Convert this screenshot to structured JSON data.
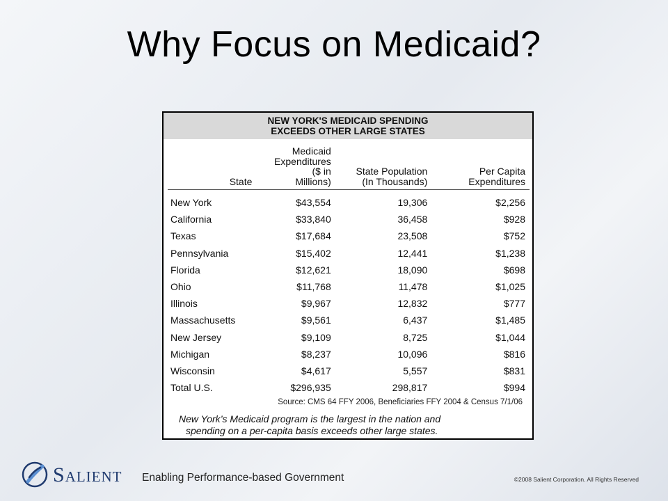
{
  "slide": {
    "title": "Why Focus on Medicaid?"
  },
  "table": {
    "header_line1": "NEW YORK'S MEDICAID SPENDING",
    "header_line2": "EXCEEDS OTHER LARGE STATES",
    "columns": {
      "state": "State",
      "exp_l1": "Medicaid",
      "exp_l2": "Expenditures",
      "exp_l3": "($ in",
      "exp_l4": "Millions)",
      "pop_l1": "State Population",
      "pop_l2": "(In Thousands)",
      "pc_l1": "Per Capita",
      "pc_l2": "Expenditures"
    },
    "rows": [
      {
        "state": "New York",
        "exp": "$43,554",
        "pop": "19,306",
        "pc": "$2,256"
      },
      {
        "state": "California",
        "exp": "$33,840",
        "pop": "36,458",
        "pc": "$928"
      },
      {
        "state": "Texas",
        "exp": "$17,684",
        "pop": "23,508",
        "pc": "$752"
      },
      {
        "state": "Pennsylvania",
        "exp": "$15,402",
        "pop": "12,441",
        "pc": "$1,238"
      },
      {
        "state": "Florida",
        "exp": "$12,621",
        "pop": "18,090",
        "pc": "$698"
      },
      {
        "state": "Ohio",
        "exp": "$11,768",
        "pop": "11,478",
        "pc": "$1,025"
      },
      {
        "state": "Illinois",
        "exp": "$9,967",
        "pop": "12,832",
        "pc": "$777"
      },
      {
        "state": "Massachusetts",
        "exp": "$9,561",
        "pop": "6,437",
        "pc": "$1,485"
      },
      {
        "state": "New Jersey",
        "exp": "$9,109",
        "pop": "8,725",
        "pc": "$1,044"
      },
      {
        "state": "Michigan",
        "exp": "$8,237",
        "pop": "10,096",
        "pc": "$816"
      },
      {
        "state": "Wisconsin",
        "exp": "$4,617",
        "pop": "5,557",
        "pc": "$831"
      },
      {
        "state": "Total U.S.",
        "exp": "$296,935",
        "pop": "298,817",
        "pc": "$994"
      }
    ],
    "source": "Source: CMS 64 FFY 2006, Beneficiaries FFY 2004 & Census 7/1/06",
    "note_line1": "New York’s Medicaid program is the largest in the nation and",
    "note_line2": "spending on a per-capita basis exceeds other large states."
  },
  "footer": {
    "brand": "Salient",
    "tagline": "Enabling Performance-based Government",
    "copyright": "©2008 Salient Corporation. All Rights Reserved"
  },
  "colors": {
    "brand_blue": "#1f3a6e",
    "header_gray": "#d9d9d9"
  },
  "icons": {
    "logo": "salient-swoosh-icon"
  }
}
